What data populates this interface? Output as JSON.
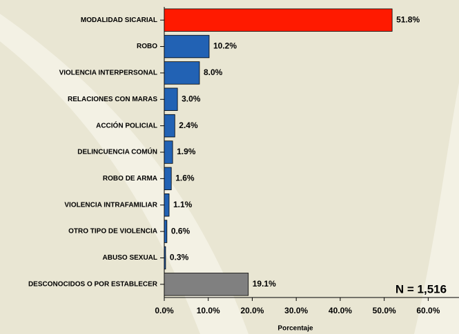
{
  "chart_data": {
    "type": "bar",
    "orientation": "horizontal",
    "categories": [
      "MODALIDAD SICARIAL",
      "ROBO",
      "VIOLENCIA INTERPERSONAL",
      "RELACIONES CON MARAS",
      "ACCIÓN POLICIAL",
      "DELINCUENCIA COMÚN",
      "ROBO DE ARMA",
      "VIOLENCIA INTRAFAMILIAR",
      "OTRO TIPO DE VIOLENCIA",
      "ABUSO SEXUAL",
      "DESCONOCIDOS O POR ESTABLECER"
    ],
    "values": [
      51.8,
      10.2,
      8.0,
      3.0,
      2.4,
      1.9,
      1.6,
      1.1,
      0.6,
      0.3,
      19.1
    ],
    "value_labels": [
      "51.8%",
      "10.2%",
      "8.0%",
      "3.0%",
      "2.4%",
      "1.9%",
      "1.6%",
      "1.1%",
      "0.6%",
      "0.3%",
      "19.1%"
    ],
    "colors": [
      "#ff1a00",
      "#2262b4",
      "#2262b4",
      "#2262b4",
      "#2262b4",
      "#2262b4",
      "#2262b4",
      "#2262b4",
      "#2262b4",
      "#2262b4",
      "#808080"
    ],
    "xlabel": "Porcentaje",
    "annotation": "N = 1,516",
    "xlim": [
      0,
      67
    ],
    "xticks": [
      {
        "value": 0,
        "label": "0.0%"
      },
      {
        "value": 10,
        "label": "10.0%"
      },
      {
        "value": 20,
        "label": "20.0%"
      },
      {
        "value": 30,
        "label": "30.0%"
      },
      {
        "value": 40,
        "label": "40.0%"
      },
      {
        "value": 50,
        "label": "50.0%"
      },
      {
        "value": 60,
        "label": "60.0%"
      }
    ]
  }
}
